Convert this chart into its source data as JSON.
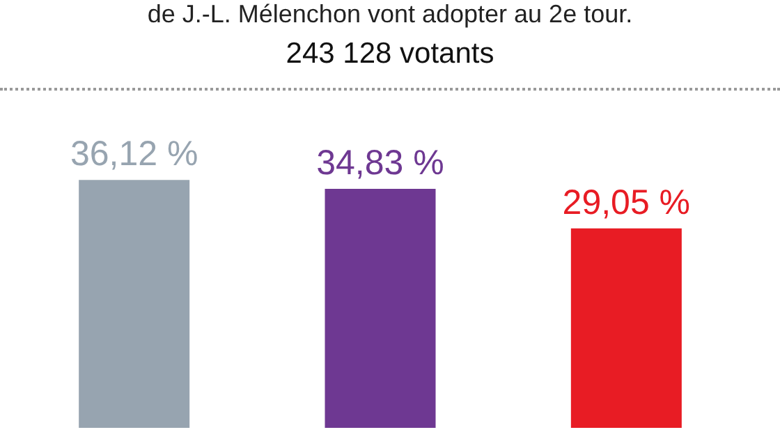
{
  "chart_data": {
    "type": "bar",
    "title": "de J.-L. Mélenchon vont adopter au 2e tour.",
    "subtitle": "243 128 votants",
    "categories": [
      null,
      null,
      null
    ],
    "values": [
      36.12,
      34.83,
      29.05
    ],
    "colors": [
      "#97a4b0",
      "#6e3892",
      "#e81c24"
    ],
    "value_labels": [
      "36,12 %",
      "34,83 %",
      "29,05 %"
    ]
  }
}
